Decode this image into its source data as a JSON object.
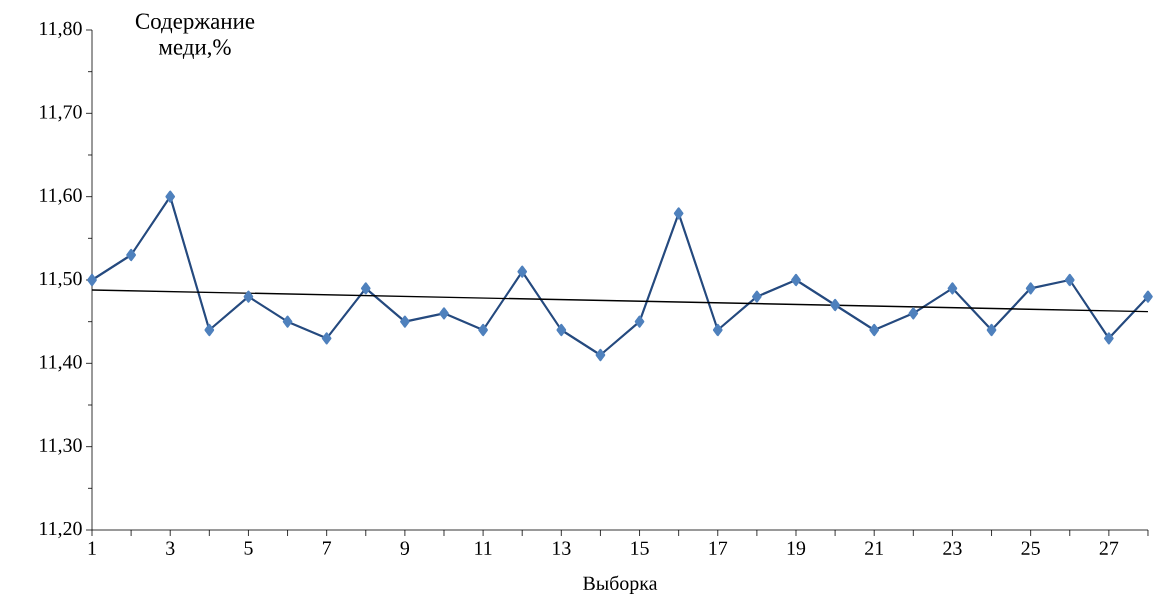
{
  "chart_data": {
    "type": "line",
    "xlabel": "Выборка",
    "ylabel": "Содержание меди,%",
    "x": [
      1,
      2,
      3,
      4,
      5,
      6,
      7,
      8,
      9,
      10,
      11,
      12,
      13,
      14,
      15,
      16,
      17,
      18,
      19,
      20,
      21,
      22,
      23,
      24,
      25,
      26,
      27,
      28
    ],
    "series": [
      {
        "color": "#254a7f",
        "marker": "diamond",
        "values": [
          11.5,
          11.53,
          11.6,
          11.44,
          11.48,
          11.45,
          11.43,
          11.49,
          11.45,
          11.46,
          11.44,
          11.51,
          11.44,
          11.41,
          11.45,
          11.58,
          11.44,
          11.48,
          11.5,
          11.47,
          11.44,
          11.46,
          11.49,
          11.44,
          11.49,
          11.5,
          11.43,
          11.48
        ]
      },
      {
        "type": "line",
        "color": "#000000",
        "marker": "none",
        "x": [
          1,
          28
        ],
        "values": [
          11.488,
          11.462
        ]
      }
    ],
    "xlim": [
      1,
      28
    ],
    "xticks": [
      1,
      {
        "value": 2,
        "label": null
      },
      3,
      {
        "value": 4,
        "label": null
      },
      5,
      {
        "value": 6,
        "label": null
      },
      7,
      {
        "value": 8,
        "label": null
      },
      9,
      {
        "value": 10,
        "label": null
      },
      11,
      {
        "value": 12,
        "label": null
      },
      13,
      {
        "value": 14,
        "label": null
      },
      15,
      {
        "value": 16,
        "label": null
      },
      17,
      {
        "value": 18,
        "label": null
      },
      19,
      {
        "value": 20,
        "label": null
      },
      21,
      {
        "value": 22,
        "label": null
      },
      23,
      {
        "value": 24,
        "label": null
      },
      25,
      {
        "value": 26,
        "label": null
      },
      27,
      {
        "value": 28,
        "label": null
      }
    ],
    "ylim": [
      11.2,
      11.8
    ],
    "yticks": [
      {
        "value": 11.2,
        "label": "11,20"
      },
      {
        "value": 11.3,
        "label": "11,30"
      },
      {
        "value": 11.4,
        "label": "11,40"
      },
      {
        "value": 11.5,
        "label": "11,50"
      },
      {
        "value": 11.6,
        "label": "11,60"
      },
      {
        "value": 11.7,
        "label": "11,70"
      },
      {
        "value": 11.8,
        "label": "11,80"
      }
    ],
    "line_style": "solid"
  }
}
